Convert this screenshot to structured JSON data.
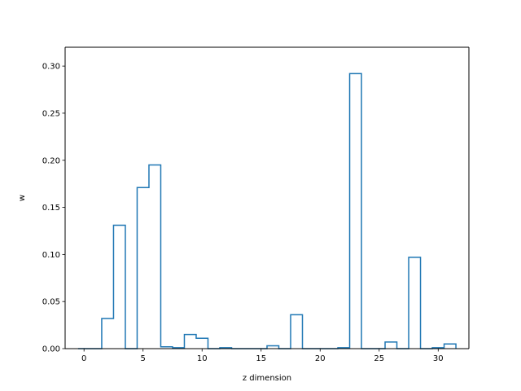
{
  "chart_data": {
    "type": "bar",
    "style": "step-histogram",
    "title": "",
    "xlabel": "z dimension",
    "ylabel": "w",
    "xlim": [
      -1.6,
      32.6
    ],
    "ylim": [
      0,
      0.32
    ],
    "xticks": [
      0,
      5,
      10,
      15,
      20,
      25,
      30
    ],
    "yticks": [
      0.0,
      0.05,
      0.1,
      0.15,
      0.2,
      0.25,
      0.3
    ],
    "xtick_labels": [
      "0",
      "5",
      "10",
      "15",
      "20",
      "25",
      "30"
    ],
    "ytick_labels": [
      "0.00",
      "0.05",
      "0.10",
      "0.15",
      "0.20",
      "0.25",
      "0.30"
    ],
    "grid": false,
    "legend": "none",
    "color": "#1f77b4",
    "x": [
      0,
      1,
      2,
      3,
      4,
      5,
      6,
      7,
      8,
      9,
      10,
      11,
      12,
      13,
      14,
      15,
      16,
      17,
      18,
      19,
      20,
      21,
      22,
      23,
      24,
      25,
      26,
      27,
      28,
      29,
      30,
      31
    ],
    "values": [
      0.0,
      0.0,
      0.032,
      0.131,
      0.0,
      0.171,
      0.195,
      0.002,
      0.001,
      0.015,
      0.011,
      0.0,
      0.001,
      0.0,
      0.0,
      0.0,
      0.003,
      0.0,
      0.036,
      0.0,
      0.0,
      0.0,
      0.001,
      0.292,
      0.0,
      0.0,
      0.007,
      0.0,
      0.097,
      0.0,
      0.001,
      0.005
    ]
  }
}
